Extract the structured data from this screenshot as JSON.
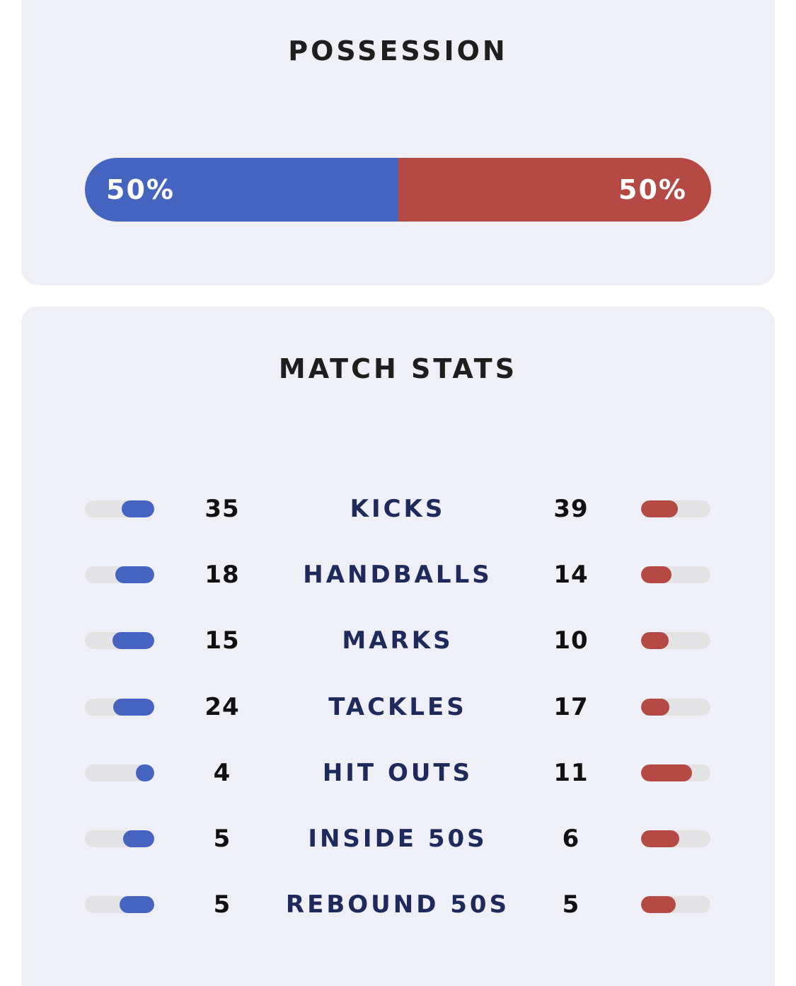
{
  "colors": {
    "home": "#4564c0",
    "away": "#b54a45",
    "track": "#e3e3e6",
    "card_bg": "#efeff7",
    "stat_label": "#1f2a5c"
  },
  "possession": {
    "title": "POSSESSION",
    "home_percent": 50,
    "away_percent": 50,
    "home_label": "50%",
    "away_label": "50%"
  },
  "match_stats": {
    "title": "MATCH STATS",
    "rows": [
      {
        "label": "KICKS",
        "home": "35",
        "away": "39",
        "home_bar_fraction": 0.47,
        "away_bar_fraction": 0.53
      },
      {
        "label": "HANDBALLS",
        "home": "18",
        "away": "14",
        "home_bar_fraction": 0.56,
        "away_bar_fraction": 0.44
      },
      {
        "label": "MARKS",
        "home": "15",
        "away": "10",
        "home_bar_fraction": 0.6,
        "away_bar_fraction": 0.4
      },
      {
        "label": "TACKLES",
        "home": "24",
        "away": "17",
        "home_bar_fraction": 0.59,
        "away_bar_fraction": 0.41
      },
      {
        "label": "HIT OUTS",
        "home": "4",
        "away": "11",
        "home_bar_fraction": 0.27,
        "away_bar_fraction": 0.73
      },
      {
        "label": "INSIDE 50S",
        "home": "5",
        "away": "6",
        "home_bar_fraction": 0.45,
        "away_bar_fraction": 0.55
      },
      {
        "label": "REBOUND 50S",
        "home": "5",
        "away": "5",
        "home_bar_fraction": 0.5,
        "away_bar_fraction": 0.5
      }
    ]
  }
}
